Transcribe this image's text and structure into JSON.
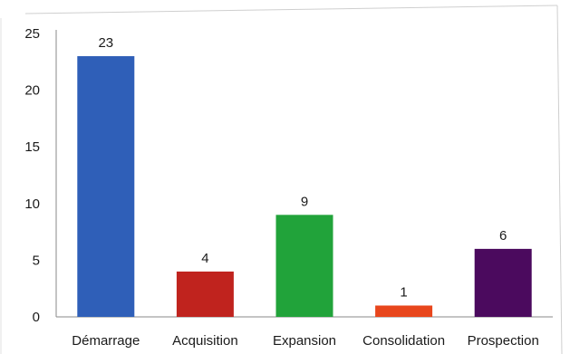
{
  "chart_data": {
    "type": "bar",
    "categories": [
      "Démarrage",
      "Acquisition",
      "Expansion",
      "Consolidation",
      "Prospection"
    ],
    "values": [
      23,
      4,
      9,
      1,
      6
    ],
    "data_labels": [
      "23",
      "4",
      "9",
      "1",
      "6"
    ],
    "colors": [
      "#2f5fb8",
      "#c0231e",
      "#21a33a",
      "#e8461c",
      "#4b0a5e"
    ],
    "ylim": [
      0,
      25
    ],
    "yticks": [
      "0",
      "5",
      "10",
      "15",
      "20",
      "25"
    ],
    "ytick_values": [
      0,
      5,
      10,
      15,
      20,
      25
    ],
    "grid": false,
    "legend": "none"
  }
}
